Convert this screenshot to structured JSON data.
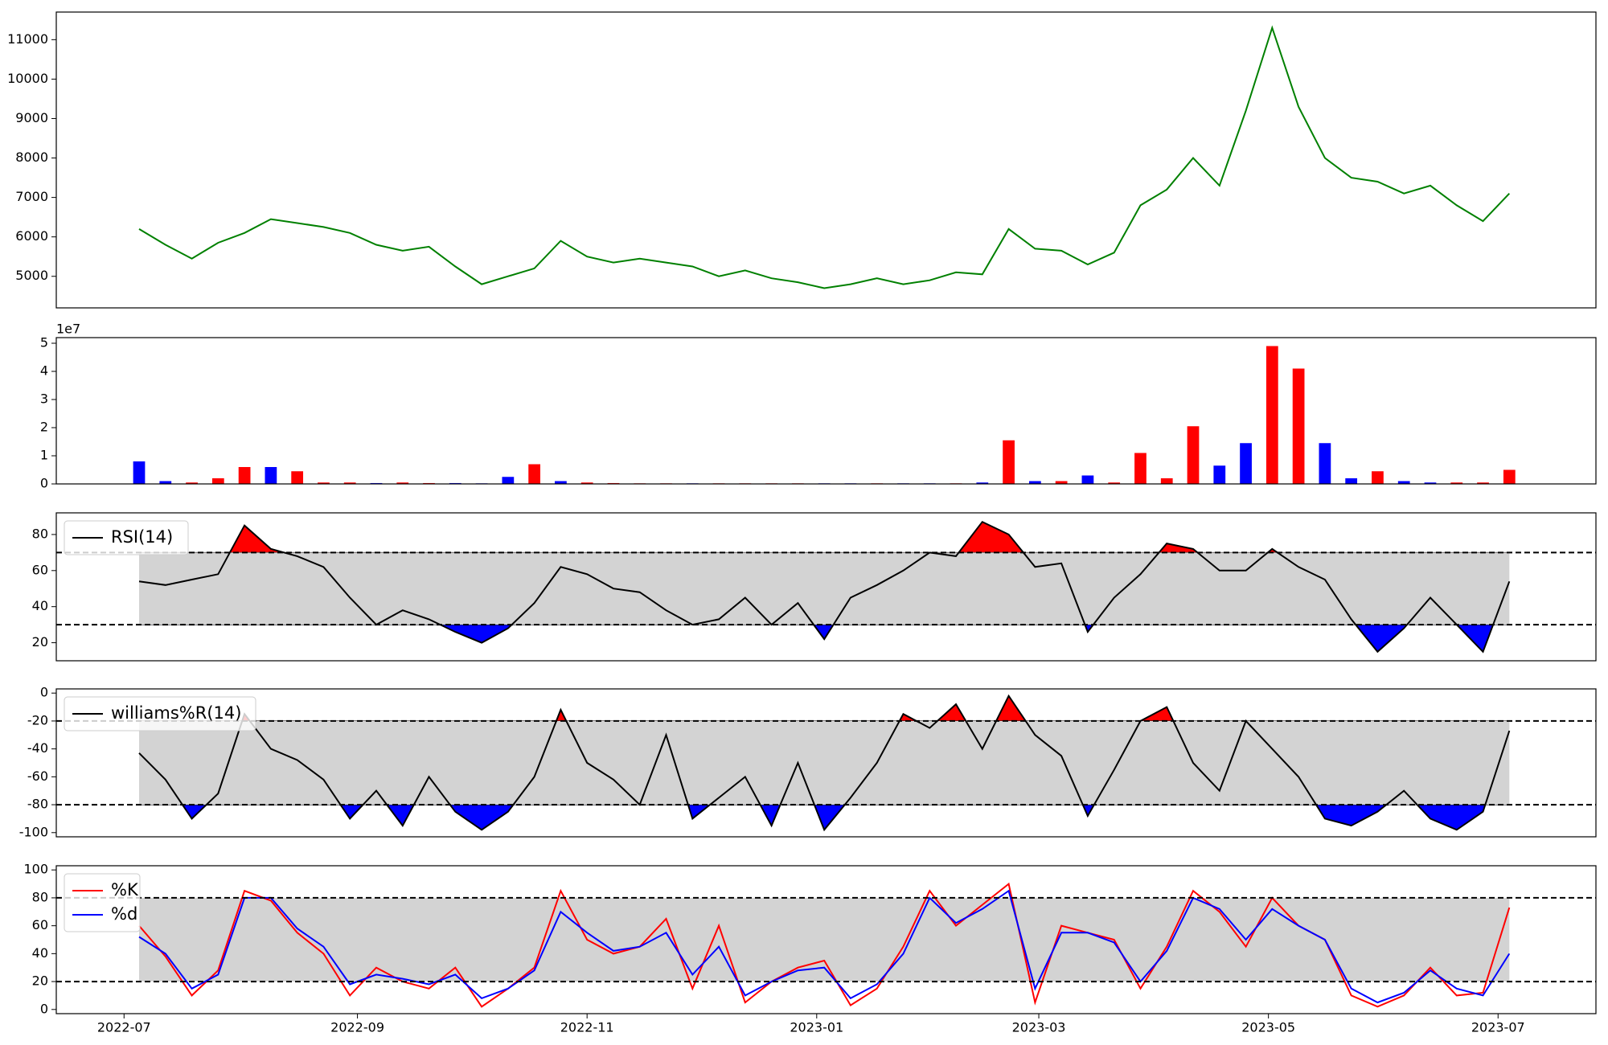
{
  "chart_data": [
    {
      "type": "line",
      "x": [
        "2022-07-05",
        "2022-07-12",
        "2022-07-19",
        "2022-07-26",
        "2022-08-02",
        "2022-08-09",
        "2022-08-16",
        "2022-08-23",
        "2022-08-30",
        "2022-09-06",
        "2022-09-13",
        "2022-09-20",
        "2022-09-27",
        "2022-10-04",
        "2022-10-11",
        "2022-10-18",
        "2022-10-25",
        "2022-11-01",
        "2022-11-08",
        "2022-11-15",
        "2022-11-22",
        "2022-11-29",
        "2022-12-06",
        "2022-12-13",
        "2022-12-20",
        "2022-12-27",
        "2023-01-03",
        "2023-01-10",
        "2023-01-17",
        "2023-01-24",
        "2023-01-31",
        "2023-02-07",
        "2023-02-14",
        "2023-02-21",
        "2023-02-28",
        "2023-03-07",
        "2023-03-14",
        "2023-03-21",
        "2023-03-28",
        "2023-04-04",
        "2023-04-11",
        "2023-04-18",
        "2023-04-25",
        "2023-05-02",
        "2023-05-09",
        "2023-05-16",
        "2023-05-23",
        "2023-05-30",
        "2023-06-06",
        "2023-06-13",
        "2023-06-20",
        "2023-06-27",
        "2023-07-04"
      ],
      "xlim": [
        "2022-06-13",
        "2023-07-27"
      ],
      "series": [
        {
          "color": "green",
          "values": [
            6200,
            5800,
            5450,
            5850,
            6100,
            6450,
            6350,
            6250,
            6100,
            5800,
            5650,
            5750,
            5250,
            4800,
            5000,
            5200,
            5900,
            5500,
            5350,
            5450,
            5350,
            5250,
            5000,
            5150,
            4950,
            4850,
            4700,
            4800,
            4950,
            4800,
            4900,
            5100,
            5050,
            6200,
            5700,
            5650,
            5300,
            5600,
            6800,
            7200,
            8000,
            7300,
            9200,
            11300,
            9300,
            8000,
            7500,
            7400,
            7100,
            7300,
            6800,
            6400,
            7100
          ]
        }
      ],
      "ylim": [
        4200,
        11700
      ],
      "yticks": [
        5000,
        6000,
        7000,
        8000,
        9000,
        10000,
        11000
      ]
    },
    {
      "type": "bar",
      "offset_text": "1e7",
      "values": [
        0.8,
        0.1,
        0.05,
        0.2,
        0.6,
        0.6,
        0.45,
        0.05,
        0.05,
        0.03,
        0.05,
        0.03,
        0.03,
        0.02,
        0.25,
        0.7,
        0.1,
        0.05,
        0.03,
        0.02,
        0.02,
        0.02,
        0.02,
        0.02,
        0.02,
        0.02,
        0.02,
        0.02,
        0.02,
        0.02,
        0.02,
        0.02,
        0.05,
        1.55,
        0.1,
        0.1,
        0.3,
        0.05,
        1.1,
        0.2,
        2.05,
        0.65,
        1.45,
        4.9,
        4.1,
        1.45,
        0.2,
        0.45,
        0.1,
        0.05,
        0.05,
        0.05,
        0.5
      ],
      "colors": [
        "blue",
        "blue",
        "red",
        "red",
        "red",
        "blue",
        "red",
        "red",
        "red",
        "blue",
        "red",
        "red",
        "blue",
        "blue",
        "blue",
        "red",
        "blue",
        "red",
        "red",
        "red",
        "red",
        "blue",
        "red",
        "red",
        "red",
        "red",
        "blue",
        "blue",
        "red",
        "blue",
        "blue",
        "red",
        "blue",
        "red",
        "blue",
        "red",
        "blue",
        "red",
        "red",
        "red",
        "red",
        "blue",
        "blue",
        "red",
        "red",
        "blue",
        "blue",
        "red",
        "blue",
        "blue",
        "red",
        "red",
        "red"
      ],
      "ylim": [
        0,
        5.2
      ],
      "yticks": [
        0,
        1,
        2,
        3,
        4,
        5
      ]
    },
    {
      "type": "line",
      "series": [
        {
          "name": "RSI(14)",
          "color": "black",
          "values": [
            54,
            52,
            55,
            58,
            85,
            72,
            68,
            62,
            45,
            30,
            38,
            33,
            26,
            20,
            28,
            42,
            62,
            58,
            50,
            48,
            38,
            30,
            33,
            45,
            30,
            42,
            22,
            45,
            52,
            60,
            70,
            68,
            87,
            80,
            62,
            64,
            26,
            45,
            58,
            75,
            72,
            60,
            60,
            72,
            62,
            55,
            33,
            15,
            28,
            45,
            30,
            15,
            54
          ]
        }
      ],
      "levels": [
        30,
        70
      ],
      "band_color": "lightgray",
      "fill_above_color": "red",
      "fill_below_color": "blue",
      "legend": "upper left",
      "ylim": [
        10,
        92
      ],
      "yticks": [
        20,
        40,
        60,
        80
      ]
    },
    {
      "type": "line",
      "series": [
        {
          "name": "williams%R(14)",
          "color": "black",
          "values": [
            -43,
            -62,
            -90,
            -72,
            -15,
            -40,
            -48,
            -62,
            -90,
            -70,
            -95,
            -60,
            -85,
            -98,
            -85,
            -60,
            -12,
            -50,
            -62,
            -80,
            -30,
            -90,
            -75,
            -60,
            -95,
            -50,
            -98,
            -75,
            -50,
            -15,
            -25,
            -8,
            -40,
            -2,
            -30,
            -45,
            -88,
            -55,
            -20,
            -10,
            -50,
            -70,
            -20,
            -40,
            -60,
            -90,
            -95,
            -85,
            -70,
            -90,
            -98,
            -85,
            -27
          ]
        }
      ],
      "levels": [
        -80,
        -20
      ],
      "band_color": "lightgray",
      "fill_above_color": "red",
      "fill_below_color": "blue",
      "legend": "upper left",
      "ylim": [
        -103,
        3
      ],
      "yticks": [
        0,
        -20,
        -40,
        -60,
        -80,
        -100
      ]
    },
    {
      "type": "line",
      "series": [
        {
          "name": "%K",
          "color": "red",
          "values": [
            60,
            38,
            10,
            28,
            85,
            78,
            55,
            40,
            10,
            30,
            20,
            15,
            30,
            2,
            15,
            30,
            85,
            50,
            40,
            45,
            65,
            15,
            60,
            5,
            20,
            30,
            35,
            3,
            15,
            45,
            85,
            60,
            75,
            90,
            5,
            60,
            55,
            50,
            15,
            45,
            85,
            70,
            45,
            80,
            60,
            50,
            10,
            2,
            10,
            30,
            10,
            12,
            73
          ]
        },
        {
          "name": "%d",
          "color": "blue",
          "values": [
            52,
            40,
            15,
            25,
            80,
            80,
            58,
            45,
            18,
            25,
            22,
            18,
            25,
            8,
            15,
            28,
            70,
            55,
            42,
            45,
            55,
            25,
            45,
            10,
            20,
            28,
            30,
            8,
            18,
            40,
            80,
            62,
            72,
            85,
            15,
            55,
            55,
            48,
            20,
            42,
            80,
            72,
            50,
            72,
            60,
            50,
            15,
            5,
            12,
            28,
            15,
            10,
            40
          ]
        }
      ],
      "levels": [
        20,
        80
      ],
      "band_color": "lightgray",
      "legend": "upper left",
      "ylim": [
        -3,
        103
      ],
      "yticks": [
        0,
        20,
        40,
        60,
        80,
        100
      ],
      "xticks": [
        "2022-07",
        "2022-09",
        "2022-11",
        "2023-01",
        "2023-03",
        "2023-05",
        "2023-07"
      ]
    }
  ]
}
